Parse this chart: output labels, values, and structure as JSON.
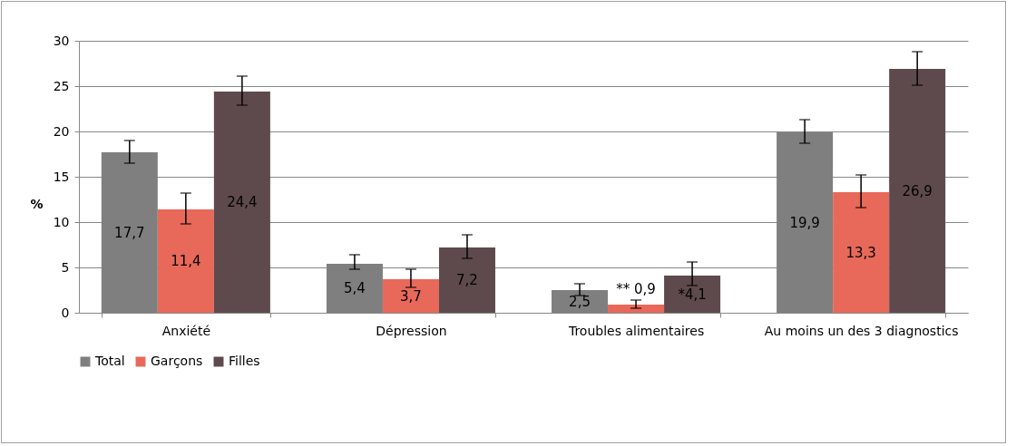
{
  "chart_data": {
    "type": "bar",
    "ylabel": "%",
    "categories": [
      "Anxiété",
      "Dépression",
      "Troubles alimentaires",
      "Au moins un des 3 diagnostics"
    ],
    "series": [
      {
        "name": "Total",
        "color": "#7f7f7f",
        "values": [
          17.7,
          5.4,
          2.5,
          19.9
        ],
        "errors": [
          [
            16.5,
            19.0
          ],
          [
            4.8,
            6.4
          ],
          [
            1.9,
            3.2
          ],
          [
            18.7,
            21.3
          ]
        ],
        "value_labels": [
          "17,7",
          "5,4",
          "2,5",
          "19,9"
        ]
      },
      {
        "name": "Garçons",
        "color": "#e8695a",
        "values": [
          11.4,
          3.7,
          0.9,
          13.3
        ],
        "errors": [
          [
            9.8,
            13.2
          ],
          [
            2.8,
            4.8
          ],
          [
            0.5,
            1.4
          ],
          [
            11.6,
            15.2
          ]
        ],
        "value_labels": [
          "11,4",
          "3,7",
          "** 0,9",
          "13,3"
        ]
      },
      {
        "name": "Filles",
        "color": "#5e4a4c",
        "values": [
          24.4,
          7.2,
          4.1,
          26.9
        ],
        "errors": [
          [
            22.9,
            26.1
          ],
          [
            6.0,
            8.6
          ],
          [
            3.0,
            5.6
          ],
          [
            25.1,
            28.8
          ]
        ],
        "value_labels": [
          "24,4",
          "7,2",
          "*4,1",
          "26,9"
        ]
      }
    ],
    "ylim": [
      0,
      30
    ],
    "yticks": [
      0,
      5,
      10,
      15,
      20,
      25,
      30
    ],
    "grid": "y",
    "legend": "bottom"
  }
}
